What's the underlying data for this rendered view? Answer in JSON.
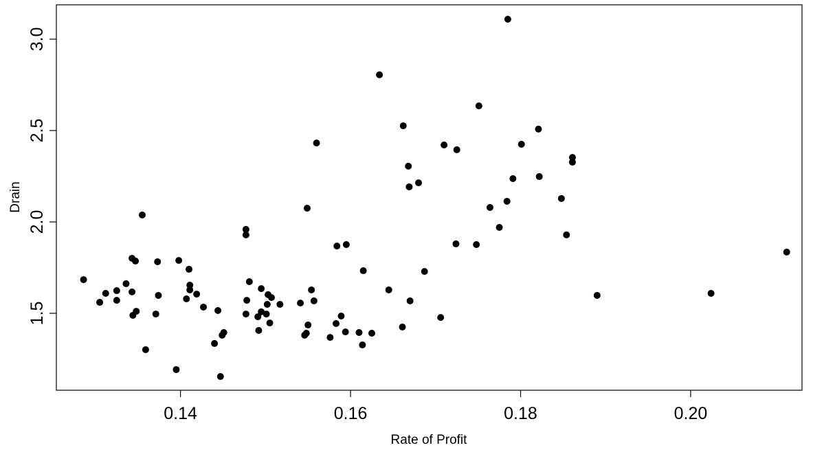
{
  "chart_data": {
    "type": "scatter",
    "x_label": "Rate of Profit",
    "y_label": "Drain",
    "color": "#000000",
    "xlim": [
      0.1254,
      0.2131
    ],
    "ylim": [
      1.079,
      3.188
    ],
    "xticks": [
      0.14,
      0.16,
      0.18,
      {
        "value": 0.2,
        "label": "0.20"
      }
    ],
    "yticks": [
      1.5,
      {
        "value": 2,
        "label": "2.0"
      },
      2.5,
      {
        "value": 3,
        "label": "3.0"
      }
    ],
    "x": [
      0.1286,
      0.1305,
      0.1312,
      0.1325,
      0.1325,
      0.1336,
      0.1343,
      0.1347,
      0.1343,
      0.1344,
      0.1348,
      0.1355,
      0.1359,
      0.1371,
      0.1373,
      0.1374,
      0.1395,
      0.1398,
      0.1407,
      0.141,
      0.1411,
      0.1411,
      0.1419,
      0.1427,
      0.144,
      0.1444,
      0.1447,
      0.1449,
      0.1451,
      0.1477,
      0.1477,
      0.1477,
      0.1478,
      0.1481,
      0.1491,
      0.1492,
      0.1495,
      0.1495,
      0.1501,
      0.1502,
      0.1503,
      0.1505,
      0.1507,
      0.1517,
      0.1541,
      0.1546,
      0.1548,
      0.1549,
      0.155,
      0.1554,
      0.1557,
      0.156,
      0.1576,
      0.1583,
      0.1584,
      0.1589,
      0.1594,
      0.1595,
      0.161,
      0.1614,
      0.1615,
      0.1625,
      0.1634,
      0.1645,
      0.1661,
      0.1662,
      0.1668,
      0.1669,
      0.167,
      0.168,
      0.1687,
      0.1706,
      0.171,
      0.1725,
      0.1724,
      0.1748,
      0.1751,
      0.1764,
      0.1775,
      0.1784,
      0.1785,
      0.1791,
      0.1801,
      0.1821,
      0.1822,
      0.1848,
      0.1854,
      0.1861,
      0.1861,
      0.189,
      0.2024,
      0.2113
    ],
    "y": [
      1.684,
      1.56,
      1.609,
      1.624,
      1.571,
      1.662,
      1.801,
      1.786,
      1.617,
      1.489,
      1.511,
      2.038,
      1.301,
      1.496,
      1.782,
      1.598,
      1.192,
      1.789,
      1.579,
      1.741,
      1.654,
      1.628,
      1.605,
      1.534,
      1.335,
      1.515,
      1.154,
      1.38,
      1.395,
      1.959,
      1.929,
      1.496,
      1.571,
      1.673,
      1.481,
      1.406,
      1.635,
      1.508,
      1.496,
      1.549,
      1.602,
      1.447,
      1.586,
      1.549,
      1.556,
      1.38,
      1.391,
      2.075,
      1.436,
      1.628,
      1.568,
      2.432,
      1.368,
      1.444,
      1.868,
      1.485,
      1.398,
      1.876,
      1.395,
      1.327,
      1.733,
      1.391,
      2.805,
      1.628,
      1.425,
      2.526,
      2.305,
      2.192,
      1.568,
      2.214,
      1.729,
      1.477,
      2.421,
      2.395,
      1.88,
      1.876,
      2.635,
      2.079,
      1.97,
      2.113,
      3.109,
      2.237,
      2.425,
      2.508,
      2.248,
      2.128,
      1.929,
      2.353,
      2.327,
      1.598,
      1.609,
      1.835
    ]
  }
}
